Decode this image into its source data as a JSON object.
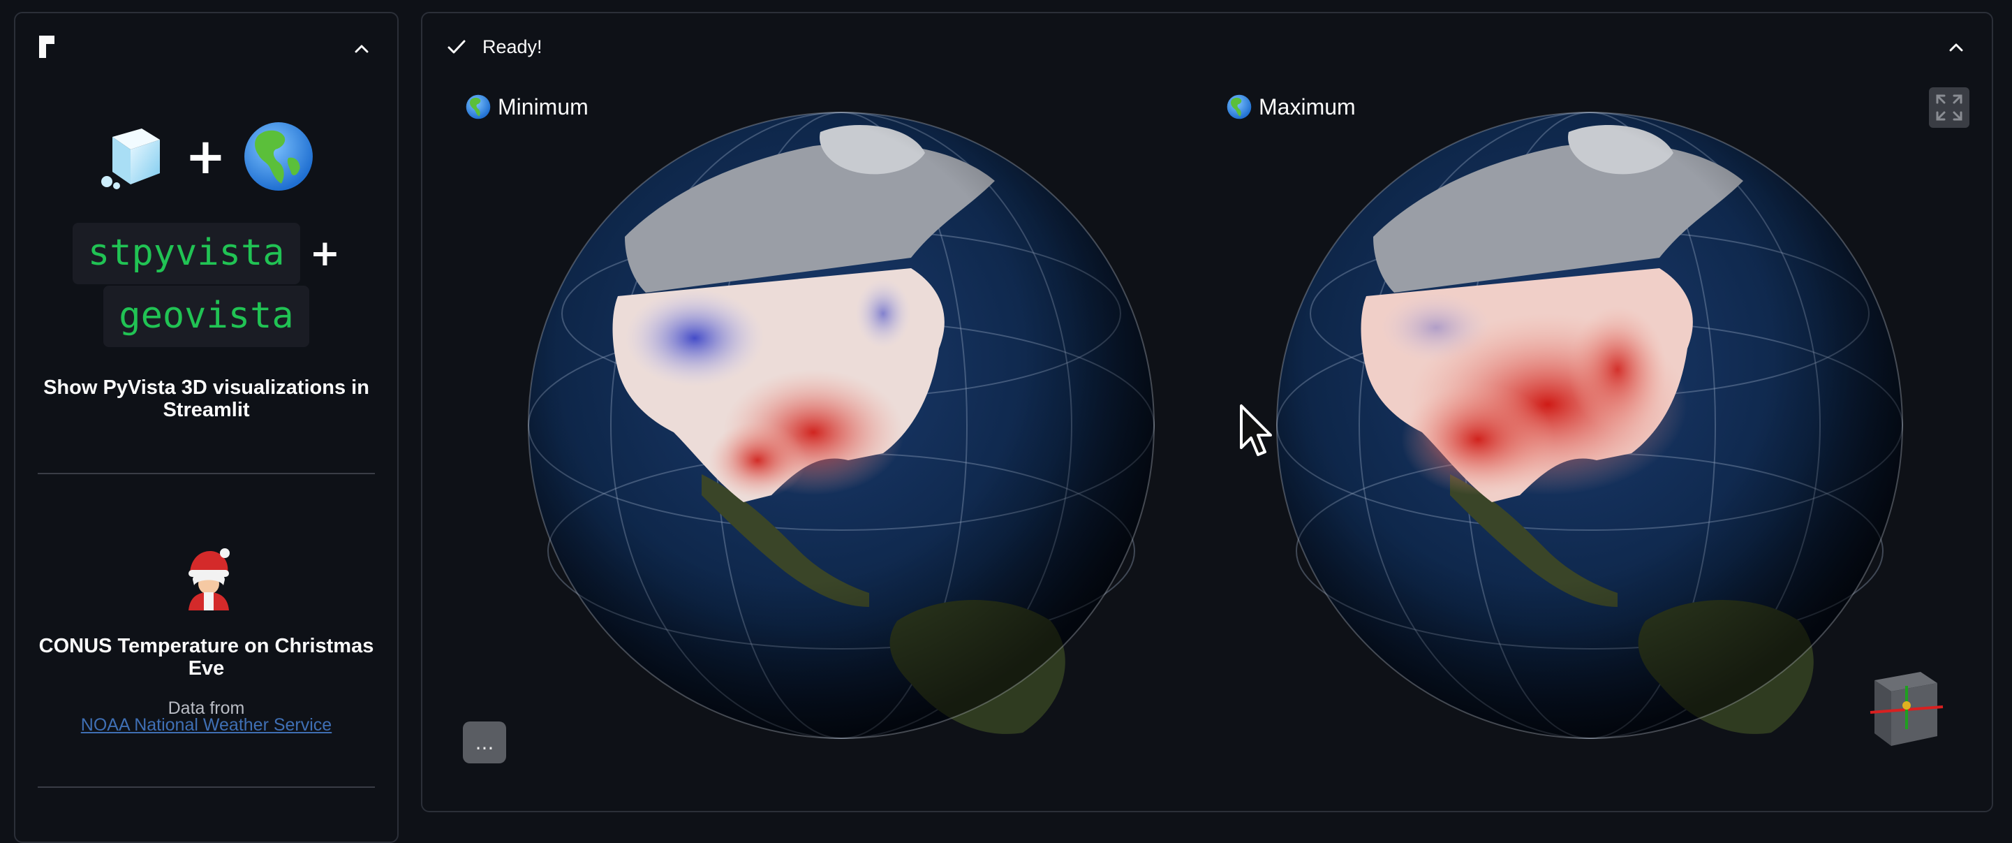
{
  "sidebar": {
    "hero_plus": "+",
    "packages": [
      "stpyvista",
      "geovista"
    ],
    "package_plus": "+",
    "subtitle": "Show PyVista 3D visualizations in Streamlit",
    "section_title": "CONUS Temperature on Christmas Eve",
    "source_label": "Data from",
    "source_link": "NOAA National Weather Service"
  },
  "main": {
    "status_text": "Ready!",
    "plots": [
      {
        "label": "Minimum"
      },
      {
        "label": "Maximum"
      }
    ],
    "menu_label": "..."
  },
  "icons": {
    "logo": "streamlit-logo-icon",
    "collapse": "chevron-up-icon",
    "cube": "ice-cube-icon",
    "globe": "globe-americas-icon",
    "santa": "mrs-claus-icon",
    "check": "check-icon",
    "fullscreen": "fullscreen-icon",
    "axes": "orientation-axes-icon",
    "cursor": "mouse-cursor-icon"
  },
  "colors": {
    "background": "#0e1117",
    "border": "#2b2f38",
    "code_text": "#21c354",
    "link": "#3f6fb4",
    "warm": "#d01c1c",
    "cool": "#3a46c8",
    "ocean": "#0d2547"
  }
}
